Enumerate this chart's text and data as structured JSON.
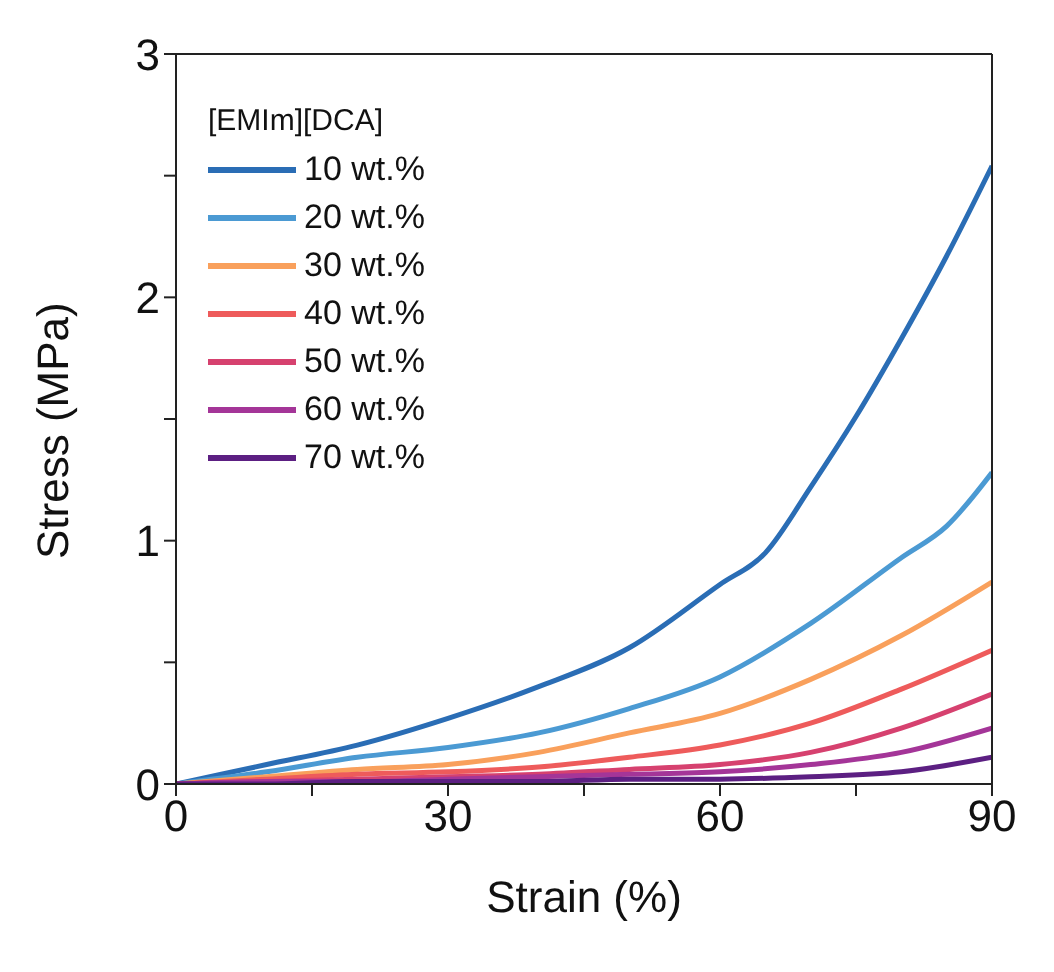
{
  "chart_data": {
    "type": "line",
    "xlabel": "Strain (%)",
    "ylabel": "Stress (MPa)",
    "legend_title": "[EMIm][DCA]",
    "legend": "top left",
    "marker": "none",
    "line_style": "solid",
    "xlim": [
      0,
      90
    ],
    "xticks": [
      0,
      {
        "value": 15,
        "label": null
      },
      30,
      {
        "value": 45,
        "label": null
      },
      60,
      {
        "value": 75,
        "label": null
      },
      90
    ],
    "ylim": [
      0,
      3
    ],
    "yticks": [
      0,
      {
        "value": 0.5,
        "label": null
      },
      1,
      {
        "value": 1.5,
        "label": null
      },
      2,
      {
        "value": 2.5,
        "label": null
      },
      3
    ],
    "series": [
      {
        "name": "10 wt.%",
        "color": "#2a6db5",
        "x": [
          0,
          10,
          20,
          30,
          40,
          50,
          60,
          65,
          70,
          75,
          80,
          85,
          90
        ],
        "values": [
          0,
          0.08,
          0.16,
          0.27,
          0.4,
          0.56,
          0.82,
          0.95,
          1.22,
          1.51,
          1.83,
          2.17,
          2.54
        ]
      },
      {
        "name": "20 wt.%",
        "color": "#4b9ad3",
        "x": [
          0,
          10,
          20,
          30,
          40,
          50,
          60,
          70,
          80,
          85,
          90
        ],
        "values": [
          0,
          0.05,
          0.11,
          0.15,
          0.21,
          0.31,
          0.44,
          0.66,
          0.93,
          1.06,
          1.28
        ]
      },
      {
        "name": "30 wt.%",
        "color": "#f9a05c",
        "x": [
          0,
          10,
          20,
          30,
          40,
          50,
          60,
          70,
          80,
          90
        ],
        "values": [
          0,
          0.03,
          0.06,
          0.08,
          0.13,
          0.21,
          0.29,
          0.43,
          0.61,
          0.83
        ]
      },
      {
        "name": "40 wt.%",
        "color": "#ee5b5b",
        "x": [
          0,
          10,
          20,
          30,
          40,
          50,
          60,
          70,
          80,
          90
        ],
        "values": [
          0,
          0.02,
          0.04,
          0.05,
          0.07,
          0.11,
          0.16,
          0.25,
          0.39,
          0.55
        ]
      },
      {
        "name": "50 wt.%",
        "color": "#d6416f",
        "x": [
          0,
          10,
          20,
          30,
          40,
          50,
          60,
          70,
          80,
          90
        ],
        "values": [
          0,
          0.01,
          0.02,
          0.03,
          0.04,
          0.06,
          0.08,
          0.13,
          0.23,
          0.37
        ]
      },
      {
        "name": "60 wt.%",
        "color": "#a43598",
        "x": [
          0,
          10,
          20,
          30,
          40,
          50,
          60,
          70,
          80,
          90
        ],
        "values": [
          0,
          0.01,
          0.01,
          0.02,
          0.03,
          0.04,
          0.05,
          0.08,
          0.13,
          0.23
        ]
      },
      {
        "name": "70 wt.%",
        "color": "#5c1f82",
        "x": [
          0,
          10,
          20,
          30,
          40,
          50,
          60,
          70,
          80,
          90
        ],
        "values": [
          0,
          0,
          0.01,
          0.01,
          0.01,
          0.02,
          0.02,
          0.03,
          0.05,
          0.11
        ]
      }
    ]
  }
}
